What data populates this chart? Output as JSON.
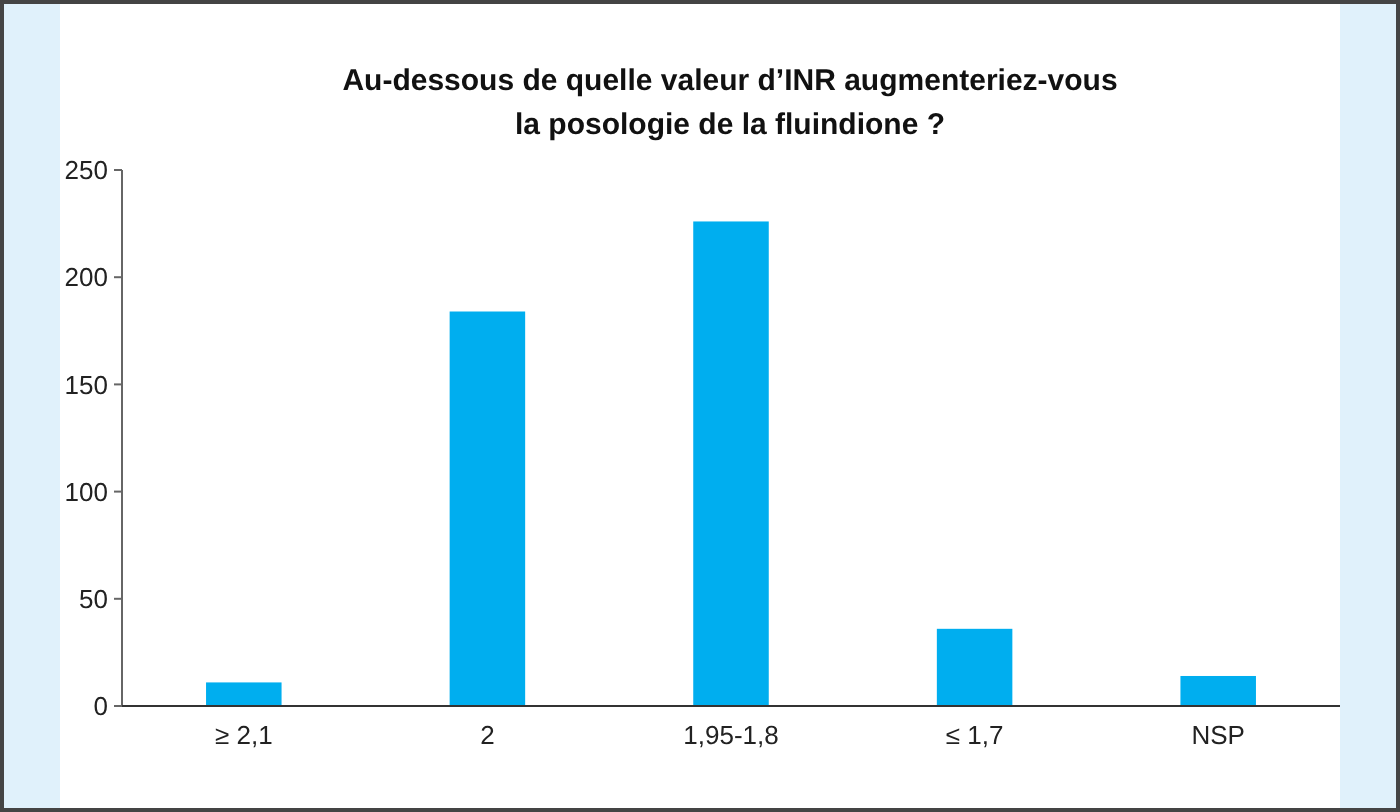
{
  "chart_data": {
    "type": "bar",
    "title": "Au-dessous de quelle valeur d’INR augmenteriez-vous\nla posologie de la fluindione ?",
    "categories": [
      "≥ 2,1",
      "2",
      "1,95-1,8",
      "≤ 1,7",
      "NSP"
    ],
    "values": [
      11,
      184,
      226,
      36,
      14
    ],
    "color": "#00aeef",
    "ylim": [
      0,
      250
    ],
    "yticks": [
      0,
      50,
      100,
      150,
      200,
      250
    ],
    "grid": false
  }
}
